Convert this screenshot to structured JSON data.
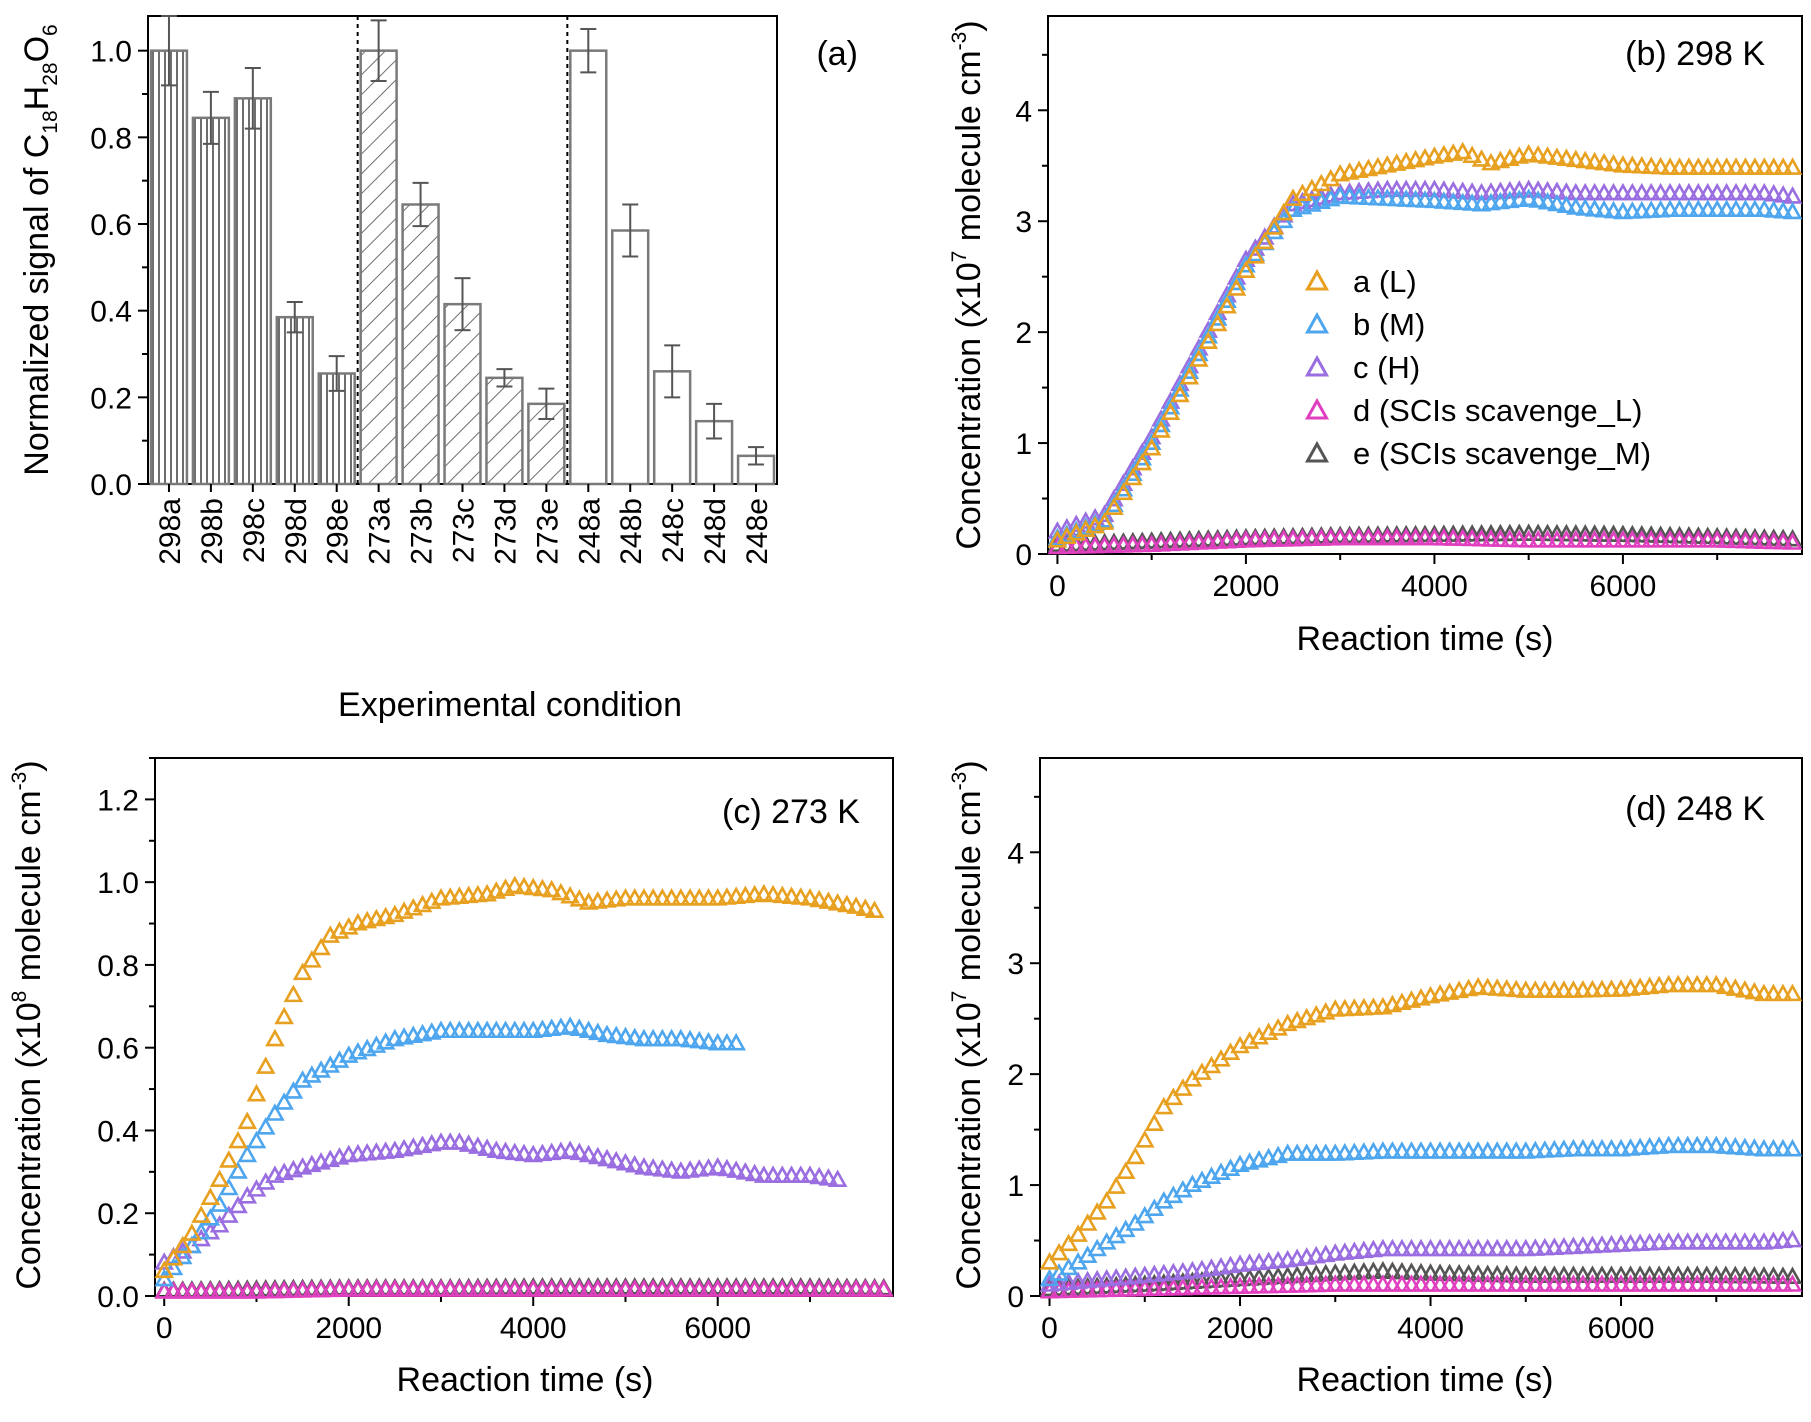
{
  "chart_data": [
    {
      "panel": "a",
      "type": "bar",
      "panel_label": "(a)",
      "xlabel": "Experimental condition",
      "ylabel": "Normalized signal of C18H28O6",
      "ylabel_parts": [
        "Normalized signal of C",
        "18",
        "H",
        "28",
        "O",
        "6"
      ],
      "ylim": [
        0,
        1.08
      ],
      "yticks": [
        "0.0",
        "0.2",
        "0.4",
        "0.6",
        "0.8",
        "1.0"
      ],
      "categories": [
        "298a",
        "298b",
        "298c",
        "298d",
        "298e",
        "273a",
        "273b",
        "273c",
        "273d",
        "273e",
        "248a",
        "248b",
        "248c",
        "248d",
        "248e"
      ],
      "values": [
        1.0,
        0.845,
        0.89,
        0.385,
        0.255,
        1.0,
        0.645,
        0.415,
        0.245,
        0.185,
        1.0,
        0.585,
        0.26,
        0.145,
        0.065
      ],
      "errors": [
        0.08,
        0.06,
        0.07,
        0.035,
        0.04,
        0.07,
        0.05,
        0.06,
        0.02,
        0.035,
        0.05,
        0.06,
        0.06,
        0.04,
        0.02
      ],
      "groups": [
        {
          "name": "298",
          "pattern": "vertical"
        },
        {
          "name": "273",
          "pattern": "diagonal"
        },
        {
          "name": "248",
          "pattern": "open"
        }
      ],
      "bar_color": "#7a7a7a"
    },
    {
      "panel": "b",
      "type": "scatter",
      "panel_label": "(b) 298 K",
      "xlabel": "Reaction time (s)",
      "ylabel_parts": [
        "Concentration (x10",
        "7",
        " molecule cm",
        "-3",
        ")"
      ],
      "xlim": [
        -100,
        7900
      ],
      "ylim": [
        0,
        4.85
      ],
      "xticks": [
        0,
        2000,
        4000,
        6000
      ],
      "yticks": [
        0,
        1,
        2,
        3,
        4
      ],
      "legend": "inside center-right",
      "series": [
        {
          "name": "a (L)",
          "color": "#E8A020",
          "x": [
            0,
            500,
            1000,
            1500,
            2000,
            2500,
            3000,
            3500,
            4000,
            4300,
            4600,
            5000,
            5500,
            6000,
            6500,
            7000,
            7500,
            7800
          ],
          "y": [
            0.12,
            0.28,
            0.95,
            1.75,
            2.55,
            3.2,
            3.42,
            3.5,
            3.58,
            3.62,
            3.52,
            3.6,
            3.55,
            3.5,
            3.48,
            3.48,
            3.48,
            3.48
          ]
        },
        {
          "name": "b (M)",
          "color": "#4EA6EE",
          "x": [
            0,
            500,
            1000,
            1500,
            2000,
            2500,
            3000,
            3500,
            4000,
            4500,
            5000,
            5500,
            6000,
            6500,
            7000,
            7500,
            7800
          ],
          "y": [
            0.14,
            0.3,
            1.0,
            1.8,
            2.6,
            3.1,
            3.22,
            3.2,
            3.18,
            3.15,
            3.2,
            3.12,
            3.08,
            3.1,
            3.1,
            3.1,
            3.08
          ]
        },
        {
          "name": "c (H)",
          "color": "#9A6EE0",
          "x": [
            0,
            500,
            1000,
            1500,
            2000,
            2500,
            3000,
            3500,
            4000,
            4500,
            5000,
            5500,
            6000,
            6500,
            7000,
            7500,
            7800
          ],
          "y": [
            0.2,
            0.35,
            1.05,
            1.85,
            2.65,
            3.15,
            3.25,
            3.28,
            3.28,
            3.25,
            3.28,
            3.25,
            3.25,
            3.25,
            3.25,
            3.25,
            3.22
          ]
        },
        {
          "name": "d (SCIs scavenge_L)",
          "color": "#E040C0",
          "x": [
            0,
            1000,
            2000,
            3000,
            4000,
            5000,
            6000,
            7000,
            7800
          ],
          "y": [
            0.06,
            0.08,
            0.12,
            0.14,
            0.14,
            0.12,
            0.12,
            0.12,
            0.1
          ]
        },
        {
          "name": "e (SCIs scavenge_M)",
          "color": "#555555",
          "x": [
            0,
            1000,
            2000,
            3000,
            4000,
            5000,
            6000,
            7000,
            7800
          ],
          "y": [
            0.08,
            0.11,
            0.14,
            0.16,
            0.17,
            0.18,
            0.17,
            0.15,
            0.13
          ]
        }
      ]
    },
    {
      "panel": "c",
      "type": "scatter",
      "panel_label": "(c) 273 K",
      "xlabel": "Reaction time (s)",
      "ylabel_parts": [
        "Concentration (x10",
        "8",
        " molecule cm",
        "-3",
        ")"
      ],
      "xlim": [
        -100,
        7900
      ],
      "ylim": [
        0,
        1.3
      ],
      "xticks": [
        0,
        2000,
        4000,
        6000
      ],
      "yticks": [
        "0.0",
        "0.2",
        "0.4",
        "0.6",
        "0.8",
        "1.0",
        "1.2"
      ],
      "series": [
        {
          "name": "a (L)",
          "color": "#E8A020",
          "x": [
            0,
            300,
            600,
            900,
            1200,
            1500,
            1800,
            2100,
            2500,
            3000,
            3500,
            3800,
            4200,
            4600,
            5000,
            5500,
            6000,
            6500,
            7000,
            7500,
            7700
          ],
          "y": [
            0.06,
            0.15,
            0.28,
            0.42,
            0.62,
            0.78,
            0.87,
            0.9,
            0.92,
            0.96,
            0.97,
            0.99,
            0.98,
            0.95,
            0.96,
            0.96,
            0.96,
            0.97,
            0.96,
            0.94,
            0.93
          ]
        },
        {
          "name": "b (M)",
          "color": "#4EA6EE",
          "x": [
            0,
            300,
            600,
            900,
            1200,
            1500,
            2000,
            2500,
            3000,
            3500,
            4000,
            4400,
            4800,
            5200,
            5600,
            6000,
            6200
          ],
          "y": [
            0.04,
            0.12,
            0.22,
            0.34,
            0.44,
            0.52,
            0.58,
            0.62,
            0.64,
            0.64,
            0.64,
            0.65,
            0.63,
            0.62,
            0.62,
            0.61,
            0.61
          ]
        },
        {
          "name": "c (H)",
          "color": "#9A6EE0",
          "x": [
            0,
            300,
            600,
            900,
            1200,
            1500,
            2000,
            2500,
            3000,
            3200,
            3600,
            4000,
            4400,
            4800,
            5200,
            5600,
            6000,
            6500,
            7000,
            7300
          ],
          "y": [
            0.08,
            0.12,
            0.17,
            0.24,
            0.29,
            0.31,
            0.34,
            0.35,
            0.37,
            0.37,
            0.35,
            0.34,
            0.35,
            0.33,
            0.31,
            0.3,
            0.31,
            0.29,
            0.29,
            0.28
          ]
        },
        {
          "name": "d (SCIs scavenge_L)",
          "color": "#E040C0",
          "x": [
            0,
            1000,
            2000,
            3000,
            4000,
            5000,
            6000,
            7000,
            7800
          ],
          "y": [
            0.01,
            0.01,
            0.015,
            0.015,
            0.015,
            0.015,
            0.015,
            0.015,
            0.015
          ]
        },
        {
          "name": "e (SCIs scavenge_M)",
          "color": "#555555",
          "x": [
            0,
            1000,
            2000,
            3000,
            4000,
            5000,
            6000,
            7000,
            7800
          ],
          "y": [
            0.012,
            0.015,
            0.018,
            0.018,
            0.02,
            0.02,
            0.02,
            0.02,
            0.018
          ]
        }
      ]
    },
    {
      "panel": "d",
      "type": "scatter",
      "panel_label": "(d) 248 K",
      "xlabel": "Reaction time (s)",
      "ylabel_parts": [
        "Concentration (x10",
        "7",
        " molecule cm",
        "-3",
        ")"
      ],
      "xlim": [
        -100,
        7900
      ],
      "ylim": [
        0,
        4.85
      ],
      "xticks": [
        0,
        2000,
        4000,
        6000
      ],
      "yticks": [
        0,
        1,
        2,
        3,
        4
      ],
      "series": [
        {
          "name": "a (L)",
          "color": "#E8A020",
          "x": [
            0,
            300,
            600,
            900,
            1200,
            1500,
            2000,
            2500,
            3000,
            3500,
            4000,
            4500,
            5000,
            5500,
            6000,
            6500,
            7000,
            7500,
            7800
          ],
          "y": [
            0.3,
            0.55,
            0.85,
            1.25,
            1.7,
            1.95,
            2.25,
            2.45,
            2.58,
            2.6,
            2.7,
            2.78,
            2.75,
            2.75,
            2.76,
            2.8,
            2.8,
            2.72,
            2.72
          ]
        },
        {
          "name": "b (M)",
          "color": "#4EA6EE",
          "x": [
            0,
            300,
            600,
            900,
            1200,
            1500,
            2000,
            2500,
            3000,
            3500,
            4000,
            4500,
            5000,
            5500,
            6000,
            6500,
            7000,
            7500,
            7800
          ],
          "y": [
            0.15,
            0.3,
            0.48,
            0.65,
            0.85,
            1.0,
            1.18,
            1.28,
            1.28,
            1.3,
            1.3,
            1.3,
            1.3,
            1.32,
            1.32,
            1.35,
            1.35,
            1.32,
            1.32
          ]
        },
        {
          "name": "c (H)",
          "color": "#9A6EE0",
          "x": [
            0,
            500,
            1000,
            1500,
            2000,
            2500,
            3000,
            3500,
            4000,
            4500,
            5000,
            5500,
            6000,
            6500,
            7000,
            7500,
            7800
          ],
          "y": [
            0.1,
            0.14,
            0.18,
            0.22,
            0.28,
            0.32,
            0.38,
            0.42,
            0.42,
            0.42,
            0.42,
            0.44,
            0.46,
            0.48,
            0.48,
            0.48,
            0.5
          ]
        },
        {
          "name": "d (SCIs scavenge_L)",
          "color": "#E040C0",
          "x": [
            0,
            1000,
            2000,
            3000,
            4000,
            5000,
            6000,
            7000,
            7800
          ],
          "y": [
            0.04,
            0.06,
            0.08,
            0.1,
            0.1,
            0.1,
            0.1,
            0.1,
            0.1
          ]
        },
        {
          "name": "e (SCIs scavenge_M)",
          "color": "#555555",
          "x": [
            0,
            1000,
            2000,
            3000,
            3500,
            4000,
            5000,
            6000,
            7000,
            7800
          ],
          "y": [
            0.06,
            0.1,
            0.15,
            0.2,
            0.22,
            0.2,
            0.18,
            0.18,
            0.18,
            0.17
          ]
        }
      ]
    }
  ]
}
